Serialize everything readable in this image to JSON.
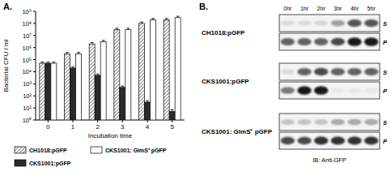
{
  "panel_labels": [
    "A.",
    "B."
  ],
  "chart_data": {
    "type": "bar",
    "x_label": "Incubation time",
    "y_label": "Bacterial CFU / ml",
    "categories": [
      "0",
      "1",
      "2",
      "3",
      "4",
      "5"
    ],
    "series": [
      {
        "name": "CH1018:pGFP",
        "color": "#9a9a9a",
        "values": [
          50000,
          300000,
          2000000,
          30000000,
          100000000,
          200000000
        ],
        "errors": [
          15000,
          100000,
          600000,
          10000000,
          30000000,
          60000000
        ]
      },
      {
        "name": "CKS1001:pGFP",
        "color": "#2b2b2b",
        "values": [
          50000,
          20000,
          5000,
          500,
          30,
          5
        ],
        "errors": [
          15000,
          6000,
          1500,
          150,
          10,
          2
        ]
      },
      {
        "name": "CKS1001: GlmS⁺ pGFP",
        "color": "#ffffff",
        "values": [
          50000,
          300000,
          3000000,
          30000000,
          200000000,
          300000000
        ],
        "errors": [
          15000,
          100000,
          900000,
          10000000,
          60000000,
          90000000
        ]
      }
    ],
    "log": "y",
    "ylim": [
      1,
      1000000000
    ],
    "yticks": [
      {
        "value": 1,
        "label": "10⁰"
      },
      {
        "value": 10,
        "label": "10¹"
      },
      {
        "value": 100,
        "label": "10²"
      },
      {
        "value": 1000,
        "label": "10³"
      },
      {
        "value": 10000,
        "label": "10⁴"
      },
      {
        "value": 100000,
        "label": "10⁵"
      },
      {
        "value": 1000000,
        "label": "10⁶"
      },
      {
        "value": 10000000,
        "label": "10⁷"
      },
      {
        "value": 100000000,
        "label": "10⁸"
      },
      {
        "value": 1000000000,
        "label": "10⁹"
      }
    ],
    "grid": false,
    "legend": "bottom"
  },
  "blot": {
    "lanes": [
      "0hr",
      "1hr",
      "2hr",
      "3hr",
      "4hr",
      "5hr"
    ],
    "rows": [
      {
        "strain": "CH1018:pGFP",
        "fractions": [
          {
            "name": "S",
            "bands": [
              0.1,
              0.1,
              0.12,
              0.35,
              0.65,
              0.65
            ]
          },
          {
            "name": "P",
            "bands": [
              0.6,
              0.6,
              0.6,
              0.7,
              0.9,
              0.9
            ]
          }
        ]
      },
      {
        "strain": "CKS1001:pGFP",
        "fractions": [
          {
            "name": "S",
            "bands": [
              0.1,
              0.6,
              0.7,
              0.6,
              0.6,
              0.6
            ]
          },
          {
            "name": "P",
            "bands": [
              0.5,
              0.9,
              0.9,
              0.05,
              0.05,
              0.05
            ]
          }
        ]
      },
      {
        "strain": "CKS1001: GlmS⁺ pGFP",
        "fractions": [
          {
            "name": "S",
            "bands": [
              0.2,
              0.2,
              0.2,
              0.3,
              0.3,
              0.3
            ]
          },
          {
            "name": "P",
            "bands": [
              0.7,
              0.7,
              0.8,
              0.8,
              0.8,
              0.8
            ]
          }
        ]
      }
    ],
    "footer": "IB: Anti-GFP"
  }
}
